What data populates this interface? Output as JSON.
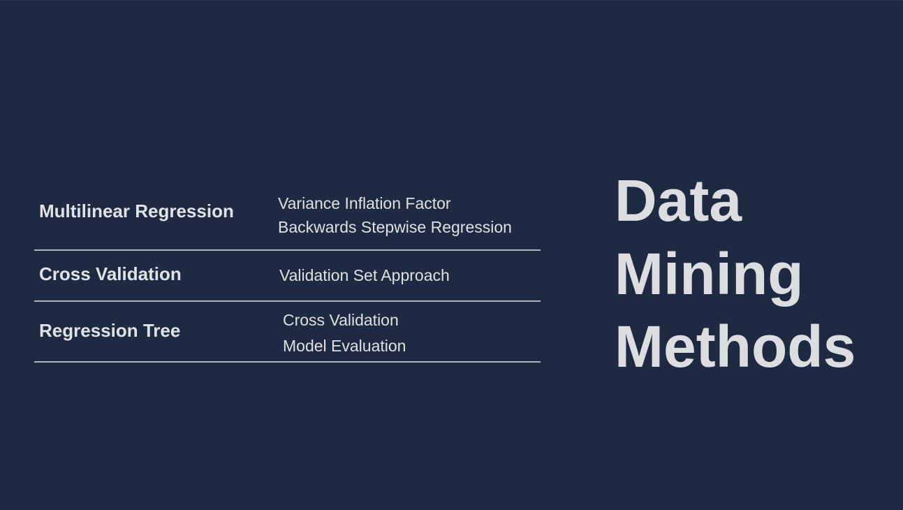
{
  "title": {
    "lines": [
      "Data",
      "Mining",
      "Methods"
    ]
  },
  "rows": [
    {
      "topic": "Multilinear Regression",
      "details": [
        "Variance Inflation Factor",
        "Backwards Stepwise Regression"
      ]
    },
    {
      "topic": "Cross Validation",
      "details": [
        "Validation Set Approach"
      ]
    },
    {
      "topic": "Regression Tree",
      "details": [
        "Cross Validation",
        "Model Evaluation"
      ]
    }
  ],
  "colors": {
    "background": "#1e2a42",
    "text": "#e1e2e6",
    "divider": "#aeb3bd"
  }
}
